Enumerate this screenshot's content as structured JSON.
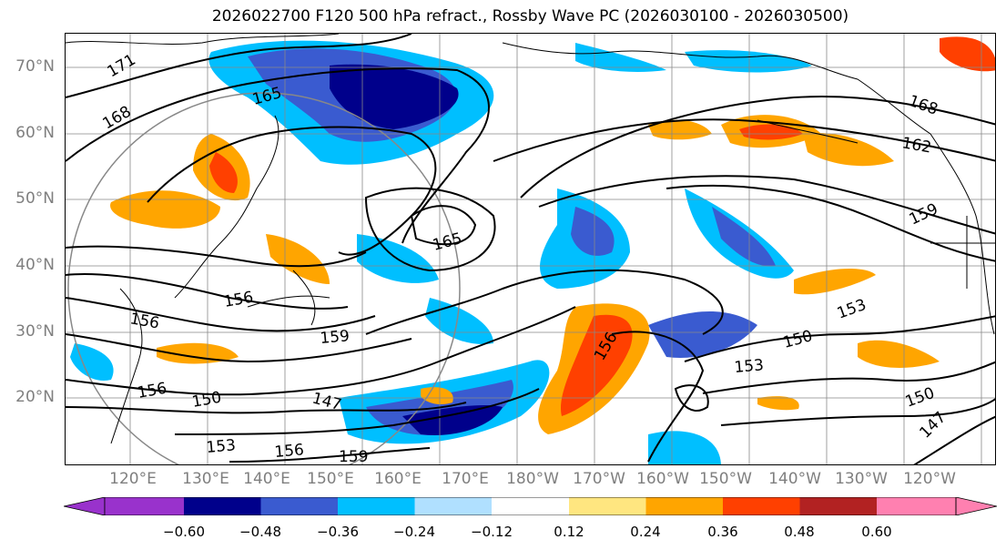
{
  "title": "2026022700 F120 500 hPa refract., Rossby Wave PC (2026030100 - 2026030500)",
  "lat_labels": [
    "70°N",
    "60°N",
    "50°N",
    "40°N",
    "30°N",
    "20°N"
  ],
  "lon_labels": [
    "120°E",
    "130°E",
    "140°E",
    "150°E",
    "160°E",
    "170°E",
    "180°W",
    "170°W",
    "160°W",
    "150°W",
    "140°W",
    "130°W",
    "120°W"
  ],
  "contour_labels": [
    "171",
    "168",
    "165",
    "165",
    "168",
    "162",
    "159",
    "156",
    "156",
    "159",
    "153",
    "150",
    "153",
    "156",
    "150",
    "147",
    "153",
    "156",
    "159",
    "156",
    "150",
    "147"
  ],
  "colorbar": {
    "ticks": [
      "−0.60",
      "−0.48",
      "−0.36",
      "−0.24",
      "−0.12",
      "0.12",
      "0.24",
      "0.36",
      "0.48",
      "0.60"
    ],
    "colors": [
      "#9932cc",
      "#00008b",
      "#3a5bd0",
      "#00bfff",
      "#b0e0ff",
      "#ffffff",
      "#ffe680",
      "#ffa500",
      "#ff4000",
      "#b22222",
      "#ff80b0"
    ]
  }
}
